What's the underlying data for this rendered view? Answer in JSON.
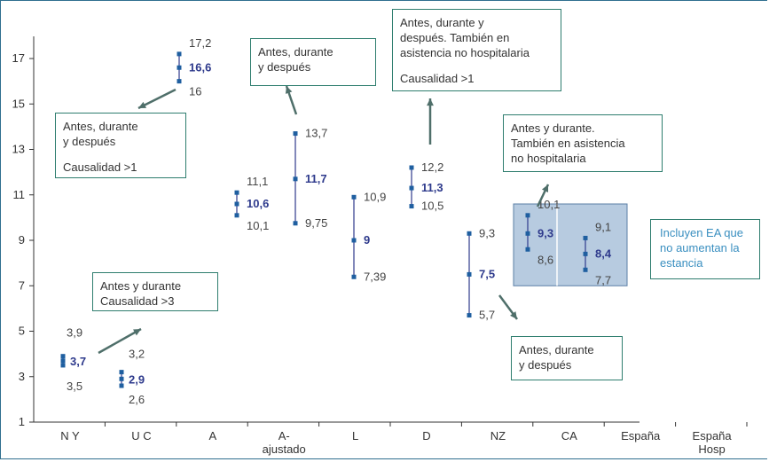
{
  "chart_data": {
    "type": "range",
    "ylim": [
      1,
      18
    ],
    "yticks": [
      1,
      3,
      5,
      7,
      9,
      11,
      13,
      15,
      17
    ],
    "ytick_labels": [
      "1",
      "3",
      "5",
      "7",
      "9",
      "11",
      "13",
      "15",
      "17"
    ],
    "categories": [
      "N Y",
      "U C",
      "A",
      "A-\najustado",
      "L",
      "D",
      "NZ",
      "CA",
      "España",
      "España\nHosp"
    ],
    "points": [
      {
        "category": "N Y",
        "high": 3.9,
        "mid": 3.7,
        "low": 3.5,
        "high_label": "3,9",
        "mid_label": "3,7",
        "low_label": "3,5"
      },
      {
        "category": "U C",
        "high": 3.2,
        "mid": 2.9,
        "low": 2.6,
        "high_label": "3,2",
        "mid_label": "2,9",
        "low_label": "2,6"
      },
      {
        "category": "A",
        "high": 17.2,
        "mid": 16.6,
        "low": 16,
        "high_label": "17,2",
        "mid_label": "16,6",
        "low_label": "16"
      },
      {
        "category": "A-ajustado",
        "high": 11.1,
        "mid": 10.6,
        "low": 10.1,
        "high_label": "11,1",
        "mid_label": "10,6",
        "low_label": "10,1"
      },
      {
        "category": "L",
        "high": 13.7,
        "mid": 11.7,
        "low": 9.75,
        "high_label": "13,7",
        "mid_label": "11,7",
        "low_label": "9,75"
      },
      {
        "category": "D",
        "high": 10.9,
        "mid": 9,
        "low": 7.39,
        "high_label": "10,9",
        "mid_label": "9",
        "low_label": "7,39"
      },
      {
        "category": "NZ",
        "high": 12.2,
        "mid": 11.3,
        "low": 10.5,
        "high_label": "12,2",
        "mid_label": "11,3",
        "low_label": "10,5"
      },
      {
        "category": "CA",
        "high": 9.3,
        "mid": 7.5,
        "low": 5.7,
        "high_label": "9,3",
        "mid_label": "7,5",
        "low_label": "5,7"
      },
      {
        "category": "España",
        "high": 10.1,
        "mid": 9.3,
        "low": 8.6,
        "high_label": "10,1",
        "mid_label": "9,3",
        "low_label": "8,6"
      },
      {
        "category": "España Hosp",
        "high": 9.1,
        "mid": 8.4,
        "low": 7.7,
        "high_label": "9,1",
        "mid_label": "8,4",
        "low_label": "7,7"
      }
    ],
    "annotations": {
      "a_note": {
        "lines": [
          "Antes, durante",
          "y después",
          "",
          "Causalidad >1"
        ]
      },
      "l_note": {
        "lines": [
          "Antes, durante",
          "y después"
        ]
      },
      "nz_note": {
        "lines": [
          "Antes, durante y",
          "después. También en",
          "asistencia no hospitalaria",
          "",
          "Causalidad >1"
        ]
      },
      "uc_note": {
        "lines": [
          "Antes y durante",
          "Causalidad >3"
        ]
      },
      "spain_note": {
        "lines": [
          "Antes y durante.",
          "También en asistencia",
          "no hospitalaria"
        ]
      },
      "ca_note": {
        "lines": [
          "Antes, durante",
          "y después"
        ]
      },
      "ea_note": {
        "lines": [
          "Incluyen EA que",
          "no aumentan la",
          "estancia"
        ]
      }
    },
    "colors": {
      "series": "#2e3a8c",
      "marker": "#1f5fa0",
      "axis": "#333333",
      "arrow": "#4f6f6a",
      "highlight": "#9fb9d6",
      "nz_low": "#3a8fc0"
    }
  }
}
